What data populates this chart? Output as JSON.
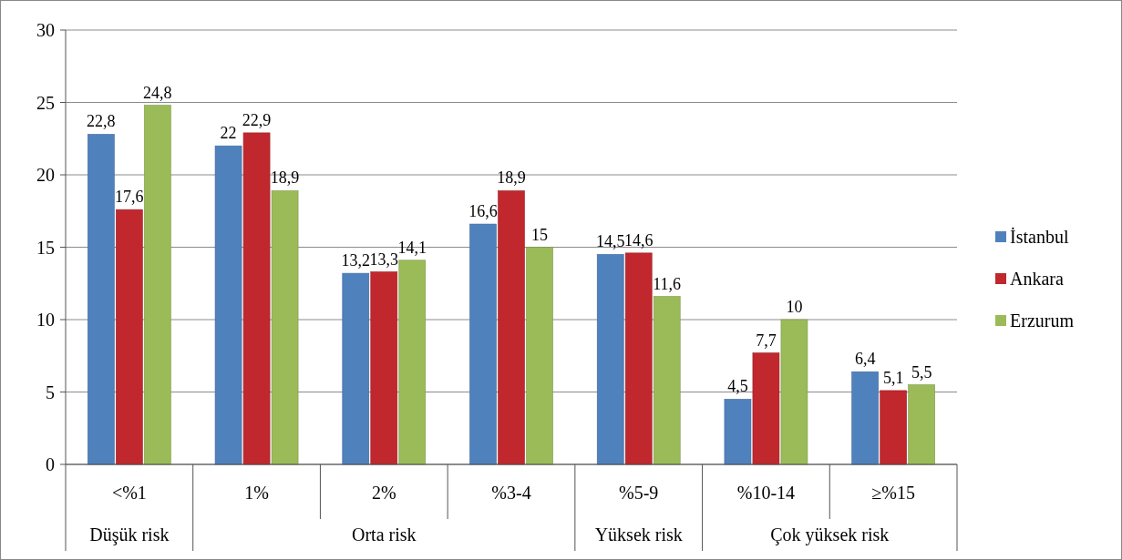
{
  "chart_data": {
    "type": "bar",
    "categories": [
      "<%1",
      "1%",
      "2%",
      "%3-4",
      "%5-9",
      "%10-14",
      "≥%15"
    ],
    "series": [
      {
        "name": "İstanbul",
        "color": "#4f81bd",
        "values": [
          22.8,
          22,
          13.2,
          16.6,
          14.5,
          4.5,
          6.4
        ],
        "value_labels": [
          "22,8",
          "22",
          "13,2",
          "16,6",
          "14,5",
          "4,5",
          "6,4"
        ]
      },
      {
        "name": "Ankara",
        "color": "#c0282d",
        "values": [
          17.6,
          22.9,
          13.3,
          18.9,
          14.6,
          7.7,
          5.1
        ],
        "value_labels": [
          "17,6",
          "22,9",
          "13,3",
          "18,9",
          "14,6",
          "7,7",
          "5,1"
        ]
      },
      {
        "name": "Erzurum",
        "color": "#9bbb59",
        "values": [
          24.8,
          18.9,
          14.1,
          15,
          11.6,
          10,
          5.5
        ],
        "value_labels": [
          "24,8",
          "18,9",
          "14,1",
          "15",
          "11,6",
          "10",
          "5,5"
        ]
      }
    ],
    "ylim": [
      0,
      30
    ],
    "yticks": [
      0,
      5,
      10,
      15,
      20,
      25,
      30
    ],
    "grid": "y",
    "legend": "right",
    "annotations": [
      "Düşük risk",
      "Orta risk",
      "Yüksek risk",
      "Çok yüksek risk"
    ]
  }
}
